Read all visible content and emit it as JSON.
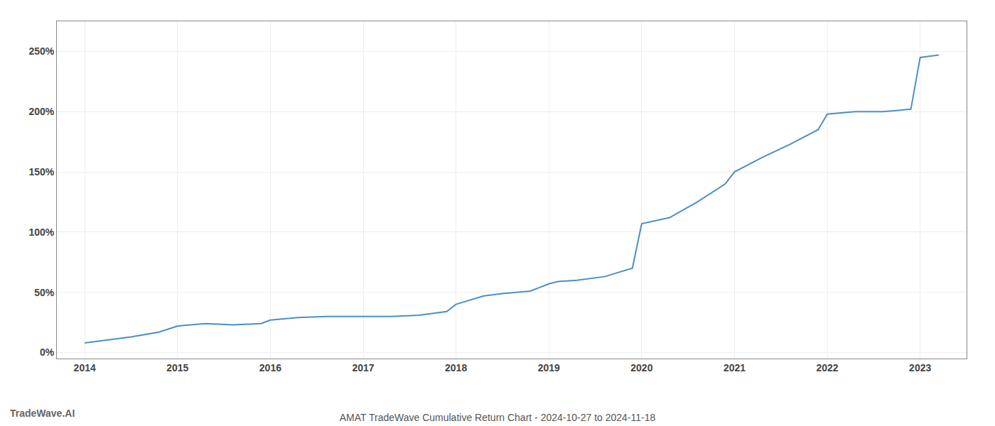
{
  "chart_data": {
    "type": "line",
    "title": "AMAT TradeWave Cumulative Return Chart - 2024-10-27 to 2024-11-18",
    "annotations": [
      {
        "text": "TradeWave.AI"
      }
    ],
    "x": [
      2014.0,
      2014.2,
      2014.5,
      2014.8,
      2015.0,
      2015.3,
      2015.6,
      2015.9,
      2016.0,
      2016.3,
      2016.6,
      2016.9,
      2017.0,
      2017.3,
      2017.6,
      2017.9,
      2018.0,
      2018.3,
      2018.5,
      2018.8,
      2019.0,
      2019.1,
      2019.3,
      2019.6,
      2019.9,
      2020.0,
      2020.3,
      2020.6,
      2020.9,
      2021.0,
      2021.3,
      2021.6,
      2021.9,
      2022.0,
      2022.3,
      2022.6,
      2022.9,
      2023.0,
      2023.2
    ],
    "values": [
      8,
      10,
      13,
      17,
      22,
      24,
      23,
      24,
      27,
      29,
      30,
      30,
      30,
      30,
      31,
      34,
      40,
      47,
      49,
      51,
      57,
      59,
      60,
      63,
      70,
      107,
      112,
      125,
      140,
      150,
      162,
      173,
      185,
      198,
      200,
      200,
      202,
      245,
      247
    ],
    "color": "#4a90c4",
    "xlim": [
      2013.7,
      2023.5
    ],
    "ylim": [
      -5,
      275
    ],
    "xticks": [
      2014,
      2015,
      2016,
      2017,
      2018,
      2019,
      2020,
      2021,
      2022,
      2023
    ],
    "yticks": [
      {
        "value": 0,
        "label": "0%"
      },
      {
        "value": 50,
        "label": "50%"
      },
      {
        "value": 100,
        "label": "100%"
      },
      {
        "value": 150,
        "label": "150%"
      },
      {
        "value": 200,
        "label": "200%"
      },
      {
        "value": 250,
        "label": "250%"
      }
    ],
    "grid": true
  }
}
